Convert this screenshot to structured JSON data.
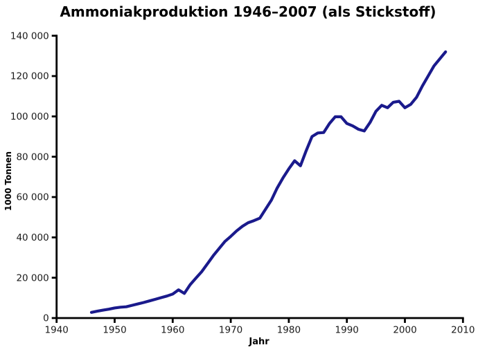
{
  "chart_data": {
    "type": "line",
    "title": "Ammoniakproduktion 1946–2007 (als Stickstoff)",
    "xlabel": "Jahr",
    "ylabel": "1000 Tonnen",
    "series_name": "Ammoniakproduktion (als Stickstoff)",
    "grid": false,
    "legend": "none",
    "line_color": "#1a1a8c",
    "axis_color": "#000000",
    "xlim": [
      1940,
      2010
    ],
    "ylim": [
      0,
      140000
    ],
    "x_ticks": [
      1940,
      1950,
      1960,
      1970,
      1980,
      1990,
      2000,
      2010
    ],
    "y_ticks": [
      0,
      20000,
      40000,
      60000,
      80000,
      100000,
      120000,
      140000
    ],
    "y_tick_labels": [
      "0",
      "20 000",
      "40 000",
      "60 000",
      "80 000",
      "100 000",
      "120 000",
      "140 000"
    ],
    "x": [
      1946,
      1947,
      1948,
      1949,
      1950,
      1951,
      1952,
      1953,
      1954,
      1955,
      1956,
      1957,
      1958,
      1959,
      1960,
      1961,
      1962,
      1963,
      1964,
      1965,
      1966,
      1967,
      1968,
      1969,
      1970,
      1971,
      1972,
      1973,
      1974,
      1975,
      1976,
      1977,
      1978,
      1979,
      1980,
      1981,
      1982,
      1983,
      1984,
      1985,
      1986,
      1987,
      1988,
      1989,
      1990,
      1991,
      1992,
      1993,
      1994,
      1995,
      1996,
      1997,
      1998,
      1999,
      2000,
      2001,
      2002,
      2003,
      2004,
      2005,
      2006,
      2007
    ],
    "values": [
      2800,
      3400,
      3900,
      4400,
      5000,
      5400,
      5600,
      6300,
      7000,
      7700,
      8500,
      9300,
      10100,
      10900,
      11900,
      14000,
      12200,
      16500,
      19800,
      23000,
      27000,
      31000,
      34500,
      38000,
      40500,
      43200,
      45500,
      47300,
      48300,
      49500,
      54000,
      58500,
      64500,
      69500,
      74000,
      78000,
      75500,
      83000,
      90000,
      91800,
      92000,
      96500,
      99800,
      99800,
      96500,
      95300,
      93600,
      92800,
      97000,
      102500,
      105500,
      104300,
      107000,
      107500,
      104300,
      106000,
      109500,
      115000,
      120000,
      125000,
      128500,
      132000
    ]
  }
}
